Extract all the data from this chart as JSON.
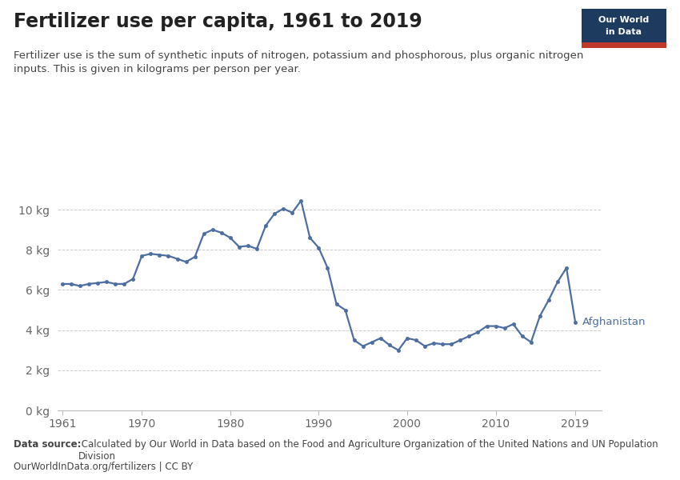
{
  "title": "Fertilizer use per capita, 1961 to 2019",
  "subtitle": "Fertilizer use is the sum of synthetic inputs of nitrogen, potassium and phosphorous, plus organic nitrogen\ninputs. This is given in kilograms per person per year.",
  "datasource_bold": "Data source:",
  "datasource_normal": " Calculated by Our World in Data based on the Food and Agriculture Organization of the United Nations and UN Population Division",
  "license": "OurWorldInData.org/fertilizers | CC BY",
  "country_label": "Afghanistan",
  "line_color": "#4c6ea2",
  "line_width": 1.6,
  "marker_size": 3.0,
  "background_color": "#ffffff",
  "grid_color": "#cccccc",
  "ylim": [
    0,
    11
  ],
  "yticks": [
    0,
    2,
    4,
    6,
    8,
    10
  ],
  "ytick_labels": [
    "0 kg",
    "2 kg",
    "4 kg",
    "6 kg",
    "8 kg",
    "10 kg"
  ],
  "xlim": [
    1961,
    2022
  ],
  "xticks": [
    1961,
    1970,
    1980,
    1990,
    2000,
    2010,
    2019
  ],
  "years": [
    1961,
    1962,
    1963,
    1964,
    1965,
    1966,
    1967,
    1968,
    1969,
    1970,
    1971,
    1972,
    1973,
    1974,
    1975,
    1976,
    1977,
    1978,
    1979,
    1980,
    1981,
    1982,
    1983,
    1984,
    1985,
    1986,
    1987,
    1988,
    1989,
    1990,
    1991,
    1992,
    1993,
    1994,
    1995,
    1996,
    1997,
    1998,
    1999,
    2000,
    2001,
    2002,
    2003,
    2004,
    2005,
    2006,
    2007,
    2008,
    2009,
    2010,
    2011,
    2012,
    2013,
    2014,
    2015,
    2016,
    2017,
    2018,
    2019
  ],
  "values": [
    6.3,
    6.3,
    6.2,
    6.3,
    6.35,
    6.4,
    6.3,
    6.3,
    6.55,
    7.7,
    7.8,
    7.75,
    7.7,
    7.55,
    7.4,
    7.65,
    8.8,
    9.0,
    8.85,
    8.6,
    8.15,
    8.2,
    8.05,
    9.2,
    9.8,
    10.05,
    9.85,
    10.45,
    8.6,
    8.1,
    7.1,
    5.3,
    5.0,
    3.5,
    3.2,
    3.4,
    3.6,
    3.25,
    3.0,
    3.6,
    3.5,
    3.2,
    3.35,
    3.3,
    3.3,
    3.5,
    3.7,
    3.9,
    4.2,
    4.2,
    4.1,
    4.3,
    3.7,
    3.4,
    4.7,
    5.5,
    6.4,
    7.1,
    4.4
  ],
  "owid_box_color": "#1d3a5f",
  "owid_box_red": "#c0392b",
  "owid_text_color": "#ffffff",
  "tick_label_color": "#666666",
  "title_color": "#222222",
  "subtitle_color": "#444444",
  "footer_color": "#444444"
}
